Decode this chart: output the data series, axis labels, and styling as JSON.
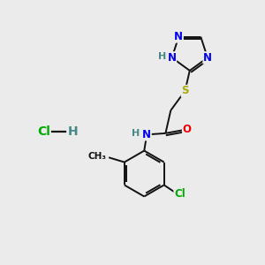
{
  "background_color": "#ebebeb",
  "atom_colors": {
    "N": "#0000EE",
    "O": "#EE0000",
    "S": "#AAAA00",
    "Cl": "#00AA00",
    "C": "#000000",
    "H": "#448888"
  },
  "font_size": 8.5,
  "bond_lw": 1.4,
  "bond_color": "#111111",
  "figsize": [
    3.0,
    3.0
  ],
  "dpi": 100
}
